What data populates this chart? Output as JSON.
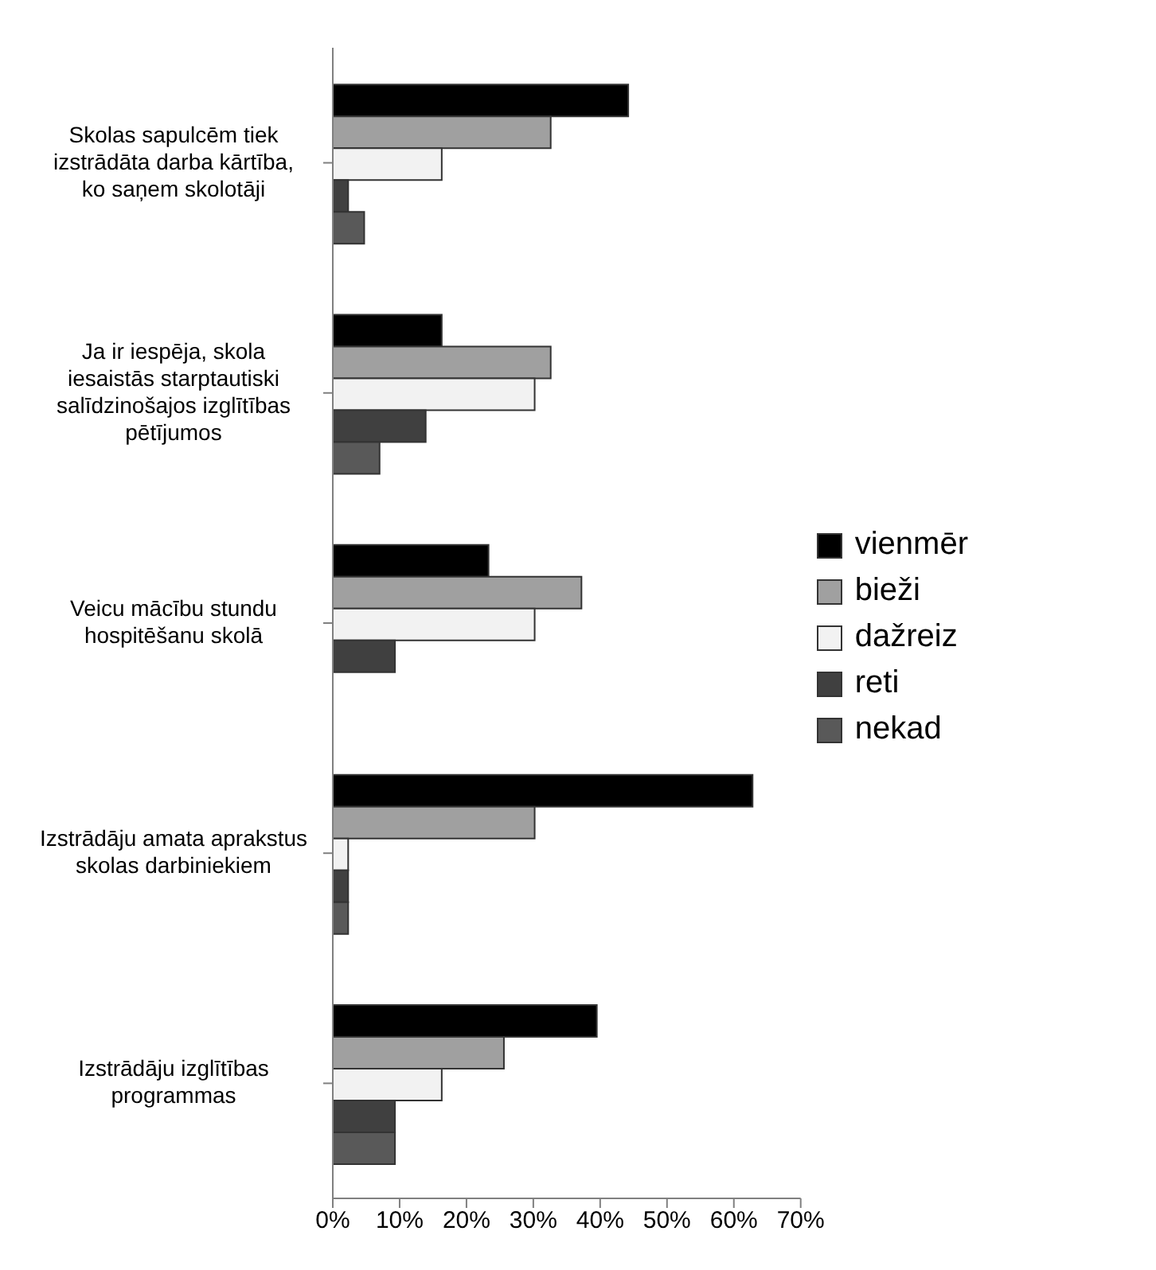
{
  "chart_data": {
    "type": "bar",
    "orientation": "horizontal",
    "categories": [
      "Skolas sapulcēm tiek izstrādāta darba kārtība, ko saņem skolotāji",
      "Ja ir iespēja, skola iesaistās starptautiski salīdzinošajos izglītības pētījumos",
      "Veicu mācību stundu hospitēšanu skolā",
      "Izstrādāju amata aprakstus skolas darbiniekiem",
      "Izstrādāju izglītības programmas"
    ],
    "series": [
      {
        "name": "vienmēr",
        "color": "#000000",
        "values": [
          44.2,
          16.3,
          23.3,
          62.8,
          39.5
        ]
      },
      {
        "name": "bieži",
        "color": "#a0a0a0",
        "values": [
          32.6,
          32.6,
          37.2,
          30.2,
          25.6
        ]
      },
      {
        "name": "dažreiz",
        "color": "#f2f2f2",
        "values": [
          16.3,
          30.2,
          30.2,
          2.3,
          16.3
        ]
      },
      {
        "name": "reti",
        "color": "#404040",
        "values": [
          2.3,
          13.9,
          9.3,
          2.3,
          9.3
        ]
      },
      {
        "name": "nekad",
        "color": "#595959",
        "values": [
          4.7,
          7.0,
          0,
          2.3,
          9.3
        ]
      }
    ],
    "xlim": [
      0,
      70
    ],
    "xticks": [
      {
        "value": 0,
        "label": "0%"
      },
      {
        "value": 10,
        "label": "10%"
      },
      {
        "value": 20,
        "label": "20%"
      },
      {
        "value": 30,
        "label": "30%"
      },
      {
        "value": 40,
        "label": "40%"
      },
      {
        "value": 50,
        "label": "50%"
      },
      {
        "value": 60,
        "label": "60%"
      },
      {
        "value": 70,
        "label": "70%"
      }
    ],
    "grid": false,
    "legend": "right"
  }
}
